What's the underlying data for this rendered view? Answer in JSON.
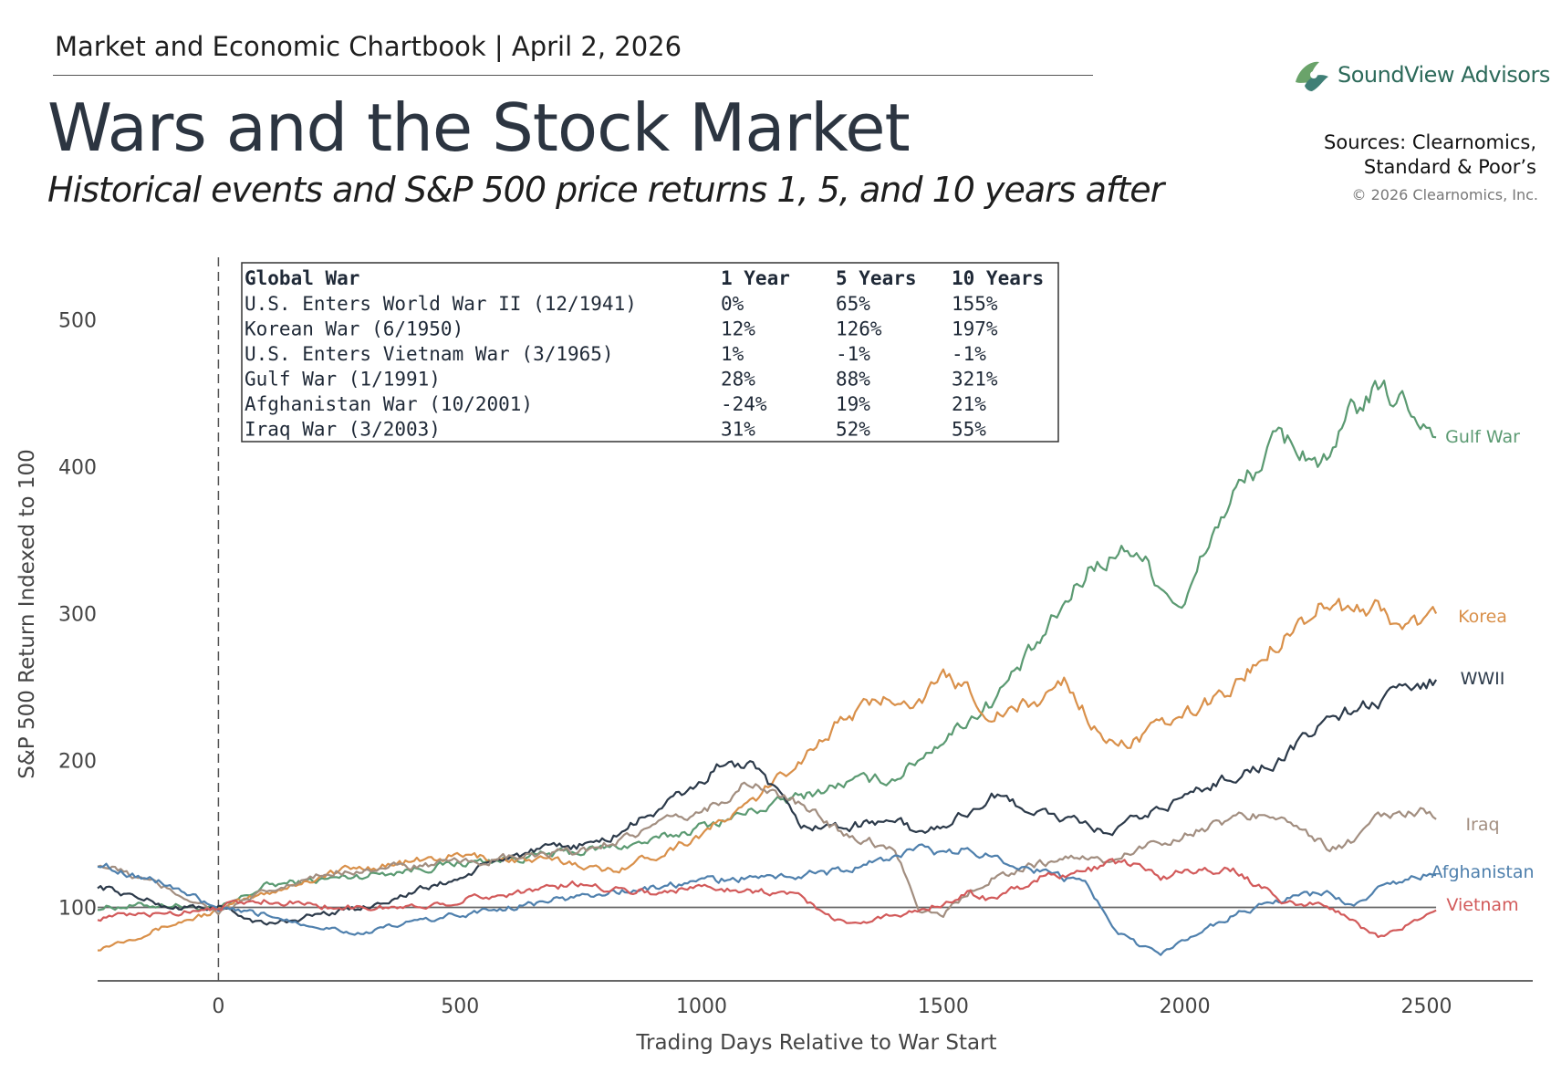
{
  "header": {
    "chartbook": "Market and Economic Chartbook",
    "date": "April 2, 2026",
    "title": "Wars and the Stock Market",
    "subtitle": "Historical events and S&P 500 price returns 1, 5, and 10 years after",
    "brand": "SoundView Advisors",
    "sources_line1": "Sources: Clearnomics,",
    "sources_line2": "Standard & Poor’s",
    "copyright": "© 2026 Clearnomics, Inc."
  },
  "table": {
    "headers": [
      "Global War",
      "1 Year",
      "5 Years",
      "10 Years"
    ],
    "rows": [
      [
        "U.S. Enters World War II (12/1941)",
        "0%",
        "65%",
        "155%"
      ],
      [
        "Korean War (6/1950)",
        "12%",
        "126%",
        "197%"
      ],
      [
        "U.S. Enters Vietnam War (3/1965)",
        "1%",
        "-1%",
        "-1%"
      ],
      [
        "Gulf War (1/1991)",
        "28%",
        "88%",
        "321%"
      ],
      [
        "Afghanistan War (10/2001)",
        "-24%",
        "19%",
        "21%"
      ],
      [
        "Iraq War (3/2003)",
        "31%",
        "52%",
        "55%"
      ]
    ]
  },
  "colors": {
    "gulf": "#5b9a72",
    "korea": "#d9904a",
    "wwii": "#2c3a4a",
    "iraq": "#a28e80",
    "afghanistan": "#4f80ad",
    "vietnam": "#d25a5a"
  },
  "chart_data": {
    "type": "line",
    "title": "Wars and the Stock Market",
    "xlabel": "Trading Days Relative to War Start",
    "ylabel": "S&P 500 Return Indexed to 100",
    "xlim": [
      -250,
      2720
    ],
    "ylim": [
      50,
      550
    ],
    "xticks": [
      0,
      500,
      1000,
      1500,
      2000,
      2500
    ],
    "yticks": [
      100,
      200,
      300,
      400,
      500
    ],
    "reference_line_y": 100,
    "event_marker_x": 0,
    "series": [
      {
        "name": "Gulf War",
        "key": "gulf",
        "x": [
          -250,
          -100,
          0,
          100,
          250,
          500,
          750,
          900,
          1000,
          1200,
          1300,
          1400,
          1500,
          1600,
          1700,
          1800,
          1850,
          1900,
          1950,
          2000,
          2050,
          2100,
          2200,
          2250,
          2300,
          2350,
          2400,
          2450,
          2500,
          2520
        ],
        "y": [
          100,
          102,
          98,
          115,
          120,
          130,
          138,
          145,
          155,
          175,
          185,
          188,
          215,
          240,
          280,
          330,
          340,
          345,
          320,
          305,
          350,
          380,
          420,
          410,
          400,
          440,
          450,
          445,
          430,
          420
        ]
      },
      {
        "name": "Korea",
        "key": "korea",
        "x": [
          -250,
          -100,
          0,
          100,
          250,
          500,
          750,
          800,
          900,
          1000,
          1100,
          1150,
          1200,
          1250,
          1300,
          1400,
          1450,
          1500,
          1550,
          1600,
          1700,
          1750,
          1800,
          1850,
          1900,
          2000,
          2100,
          2200,
          2300,
          2350,
          2400,
          2450,
          2500,
          2520
        ],
        "y": [
          72,
          88,
          98,
          110,
          125,
          135,
          130,
          124,
          135,
          150,
          170,
          185,
          200,
          215,
          230,
          245,
          240,
          255,
          250,
          230,
          240,
          255,
          230,
          210,
          215,
          230,
          250,
          285,
          310,
          300,
          305,
          290,
          295,
          300
        ]
      },
      {
        "name": "WWII",
        "key": "wwii",
        "x": [
          -250,
          -100,
          0,
          100,
          200,
          300,
          400,
          500,
          600,
          700,
          800,
          900,
          1000,
          1050,
          1100,
          1150,
          1200,
          1300,
          1400,
          1450,
          1500,
          1550,
          1600,
          1650,
          1700,
          1800,
          1850,
          1900,
          2000,
          2100,
          2200,
          2250,
          2300,
          2350,
          2400,
          2450,
          2500,
          2520
        ],
        "y": [
          115,
          100,
          100,
          88,
          95,
          100,
          110,
          120,
          135,
          140,
          145,
          165,
          185,
          200,
          195,
          180,
          155,
          155,
          160,
          150,
          155,
          165,
          175,
          170,
          165,
          155,
          150,
          160,
          175,
          190,
          200,
          215,
          230,
          235,
          240,
          245,
          250,
          255
        ]
      },
      {
        "name": "Iraq",
        "key": "iraq",
        "x": [
          -250,
          -100,
          0,
          100,
          250,
          500,
          750,
          1000,
          1100,
          1200,
          1300,
          1400,
          1450,
          1500,
          1550,
          1600,
          1700,
          1800,
          1850,
          1900,
          2000,
          2100,
          2200,
          2250,
          2300,
          2350,
          2400,
          2450,
          2500,
          2520
        ],
        "y": [
          130,
          112,
          97,
          110,
          125,
          130,
          138,
          165,
          185,
          170,
          150,
          140,
          100,
          95,
          110,
          120,
          130,
          135,
          130,
          140,
          150,
          160,
          165,
          150,
          140,
          145,
          160,
          165,
          165,
          160
        ]
      },
      {
        "name": "Afghanistan",
        "key": "afghanistan",
        "x": [
          -250,
          -100,
          0,
          100,
          200,
          300,
          400,
          500,
          600,
          700,
          800,
          900,
          1000,
          1100,
          1200,
          1300,
          1400,
          1450,
          1500,
          1550,
          1600,
          1650,
          1700,
          1750,
          1800,
          1850,
          1900,
          1950,
          2000,
          2100,
          2200,
          2300,
          2350,
          2400,
          2450,
          2500,
          2520
        ],
        "y": [
          130,
          115,
          98,
          95,
          88,
          82,
          90,
          95,
          100,
          105,
          110,
          113,
          118,
          120,
          122,
          125,
          135,
          140,
          135,
          140,
          135,
          130,
          125,
          120,
          115,
          85,
          75,
          68,
          78,
          95,
          105,
          110,
          100,
          112,
          118,
          122,
          122
        ]
      },
      {
        "name": "Vietnam",
        "key": "vietnam",
        "x": [
          -250,
          -100,
          0,
          100,
          250,
          400,
          500,
          650,
          750,
          900,
          1000,
          1100,
          1200,
          1250,
          1300,
          1400,
          1500,
          1550,
          1600,
          1700,
          1800,
          1850,
          1900,
          1950,
          2000,
          2100,
          2200,
          2300,
          2400,
          2450,
          2500,
          2520
        ],
        "y": [
          93,
          96,
          101,
          105,
          100,
          100,
          105,
          112,
          116,
          110,
          114,
          112,
          108,
          98,
          88,
          95,
          103,
          110,
          105,
          120,
          125,
          130,
          130,
          120,
          125,
          125,
          105,
          100,
          80,
          85,
          95,
          98
        ]
      }
    ]
  }
}
